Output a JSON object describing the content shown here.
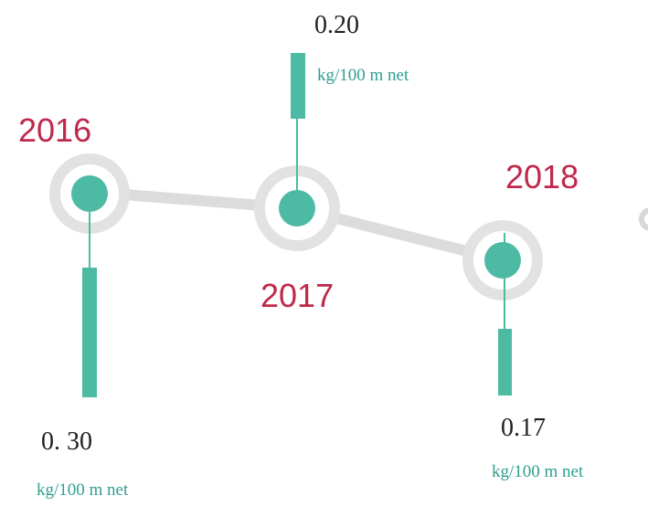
{
  "items": [
    {
      "year": "2016",
      "value": "0. 30",
      "unit": "kg/100 m net"
    },
    {
      "year": "2017",
      "value": "0.20",
      "unit": "kg/100 m net"
    },
    {
      "year": "2018",
      "value": "0.17",
      "unit": "kg/100 m net"
    }
  ]
}
